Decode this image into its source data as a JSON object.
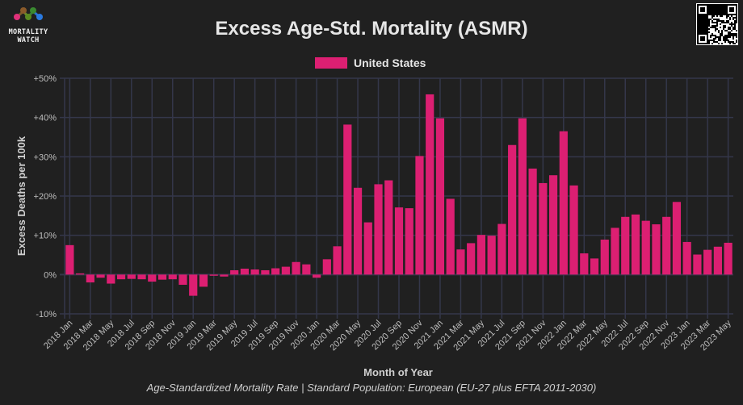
{
  "header": {
    "title": "Excess Age-Std. Mortality (ASMR)",
    "logo_text": [
      "MORTALITY",
      "WATCH"
    ]
  },
  "footer": "Age-Standardized Mortality Rate | Standard Population: European (EU-27 plus EFTA 2011-2030)",
  "colors": {
    "bar": "#dc1f72",
    "grid": "#34374a",
    "background": "#202020"
  },
  "chart_data": {
    "type": "bar",
    "title": "Excess Age-Std. Mortality (ASMR)",
    "xlabel": "Month of Year",
    "ylabel": "Excess Deaths per 100k",
    "ylim": [
      -10,
      50
    ],
    "yticks": [
      "-10%",
      "0%",
      "+10%",
      "+20%",
      "+30%",
      "+40%",
      "+50%"
    ],
    "ytick_values": [
      -10,
      0,
      10,
      20,
      30,
      40,
      50
    ],
    "legend": {
      "position": "top-center",
      "entries": [
        "United States"
      ]
    },
    "grid": true,
    "categories": [
      "2018 Jan",
      "2018 Feb",
      "2018 Mar",
      "2018 Apr",
      "2018 May",
      "2018 Jun",
      "2018 Jul",
      "2018 Aug",
      "2018 Sep",
      "2018 Oct",
      "2018 Nov",
      "2018 Dec",
      "2019 Jan",
      "2019 Feb",
      "2019 Mar",
      "2019 Apr",
      "2019 May",
      "2019 Jun",
      "2019 Jul",
      "2019 Aug",
      "2019 Sep",
      "2019 Oct",
      "2019 Nov",
      "2019 Dec",
      "2020 Jan",
      "2020 Feb",
      "2020 Mar",
      "2020 Apr",
      "2020 May",
      "2020 Jun",
      "2020 Jul",
      "2020 Aug",
      "2020 Sep",
      "2020 Oct",
      "2020 Nov",
      "2020 Dec",
      "2021 Jan",
      "2021 Feb",
      "2021 Mar",
      "2021 Apr",
      "2021 May",
      "2021 Jun",
      "2021 Jul",
      "2021 Aug",
      "2021 Sep",
      "2021 Oct",
      "2021 Nov",
      "2021 Dec",
      "2022 Jan",
      "2022 Feb",
      "2022 Mar",
      "2022 Apr",
      "2022 May",
      "2022 Jun",
      "2022 Jul",
      "2022 Aug",
      "2022 Sep",
      "2022 Oct",
      "2022 Nov",
      "2022 Dec",
      "2023 Jan",
      "2023 Feb",
      "2023 Mar",
      "2023 Apr",
      "2023 May"
    ],
    "series": [
      {
        "name": "United States",
        "values": [
          7.5,
          0.3,
          -2.0,
          -0.8,
          -2.3,
          -1.2,
          -1.1,
          -1.2,
          -1.8,
          -1.3,
          -1.2,
          -2.6,
          -5.4,
          -3.1,
          -0.3,
          -0.5,
          1.1,
          1.5,
          1.3,
          1.1,
          1.6,
          2.0,
          3.2,
          2.6,
          -0.8,
          3.9,
          7.2,
          38.2,
          22.1,
          13.3,
          23.0,
          24.0,
          17.1,
          16.9,
          30.2,
          45.9,
          39.8,
          19.3,
          6.4,
          8.0,
          10.1,
          9.9,
          12.9,
          33.0,
          39.8,
          27.0,
          23.3,
          25.3,
          36.5,
          22.7,
          5.4,
          4.1,
          8.9,
          11.9,
          14.7,
          15.3,
          13.7,
          12.8,
          14.7,
          18.5,
          8.3,
          5.1,
          6.3,
          7.1,
          8.1
        ]
      }
    ]
  }
}
